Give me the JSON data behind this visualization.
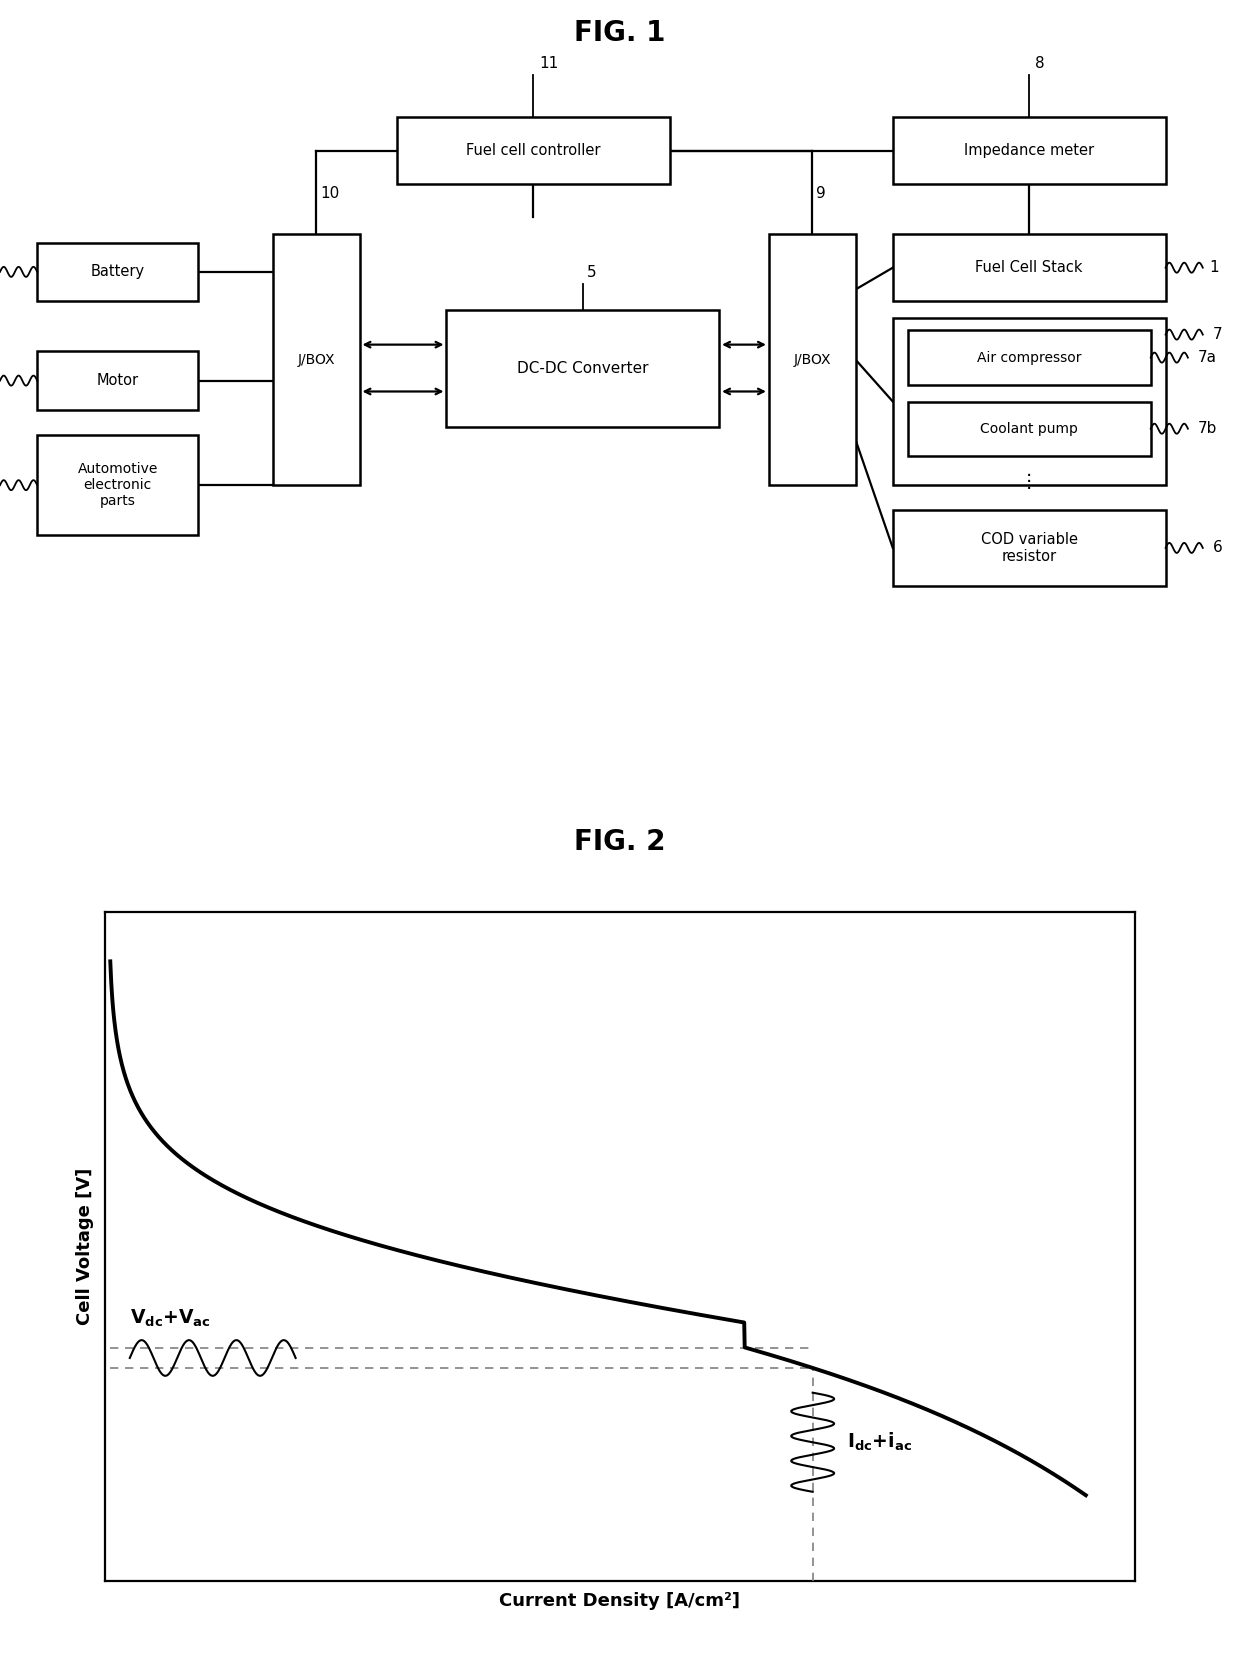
{
  "fig1_title": "FIG. 1",
  "fig2_title": "FIG. 2",
  "bg_color": "#ffffff",
  "fig2_ylabel": "Cell Voltage [V]",
  "fig2_xlabel": "Current Density [A/cm²]"
}
